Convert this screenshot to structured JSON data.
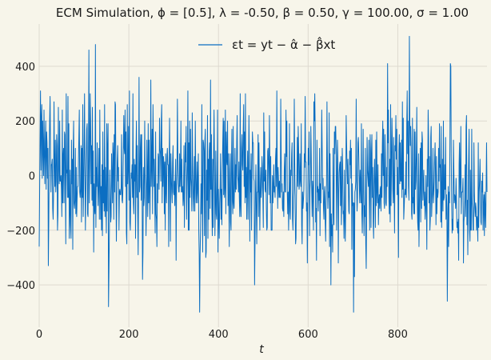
{
  "chart_data": {
    "type": "line",
    "title": "ECM Simulation, ϕ = [0.5], λ = -0.50, β = 0.50, γ = 100.00, σ = 1.00",
    "xlabel": "t",
    "ylabel": "",
    "xlim": [
      0,
      999
    ],
    "ylim": [
      -555,
      555
    ],
    "xticks": [
      0,
      200,
      400,
      600,
      800
    ],
    "yticks": [
      -400,
      -200,
      0,
      200,
      400
    ],
    "grid": true,
    "legend_position": "top-center",
    "colors": {
      "background": "#f7f5ea",
      "grid": "#dedad0",
      "series": "#0b6ec2"
    },
    "series": [
      {
        "name": "εt = yt − α̂ − β̂xt",
        "values": [
          -260,
          -60,
          140,
          310,
          20,
          210,
          260,
          -10,
          200,
          100,
          0,
          240,
          80,
          -30,
          120,
          200,
          -50,
          160,
          120,
          -10,
          100,
          -330,
          -170,
          70,
          200,
          290,
          80,
          -60,
          40,
          40,
          60,
          -120,
          -160,
          -60,
          270,
          40,
          -40,
          130,
          -60,
          -20,
          150,
          110,
          -200,
          -140,
          250,
          40,
          -30,
          200,
          -20,
          -20,
          0,
          -50,
          -150,
          240,
          -100,
          70,
          100,
          -100,
          160,
          150,
          -40,
          -250,
          300,
          10,
          20,
          -80,
          290,
          -80,
          190,
          -230,
          -140,
          20,
          -180,
          -230,
          130,
          -30,
          60,
          -270,
          100,
          200,
          -100,
          -120,
          -90,
          100,
          -140,
          30,
          -150,
          -80,
          -40,
          -40,
          40,
          140,
          240,
          -60,
          -80,
          -50,
          110,
          -170,
          100,
          -80,
          260,
          -150,
          -40,
          100,
          300,
          0,
          -200,
          -60,
          50,
          170,
          190,
          -140,
          -150,
          80,
          460,
          -100,
          30,
          300,
          200,
          -30,
          110,
          -90,
          250,
          -110,
          90,
          -280,
          -30,
          -120,
          -140,
          480,
          -190,
          30,
          -40,
          120,
          -20,
          -110,
          -40,
          100,
          -160,
          240,
          -20,
          -160,
          -40,
          -200,
          40,
          -220,
          160,
          -100,
          20,
          -130,
          260,
          -150,
          30,
          -100,
          -210,
          190,
          -130,
          110,
          190,
          -480,
          -350,
          -200,
          20,
          -80,
          -170,
          -150,
          80,
          -10,
          -100,
          120,
          80,
          -160,
          150,
          -60,
          270,
          260,
          -20,
          -240,
          -100,
          50,
          110,
          -20,
          30,
          -200,
          -60,
          -50,
          -70,
          -70,
          -40,
          150,
          -90,
          -100,
          -50,
          90,
          220,
          100,
          80,
          240,
          -40,
          160,
          -210,
          -250,
          260,
          -30,
          30,
          180,
          -90,
          310,
          -170,
          -200,
          -80,
          10,
          -10,
          40,
          -80,
          300,
          -100,
          -140,
          60,
          -20,
          40,
          -230,
          70,
          200,
          -80,
          110,
          -140,
          -290,
          -40,
          360,
          -60,
          -40,
          100,
          150,
          -90,
          150,
          -20,
          -380,
          -280,
          30,
          -110,
          -80,
          200,
          0,
          -40,
          -220,
          -100,
          130,
          -10,
          -150,
          190,
          -100,
          130,
          -60,
          -160,
          10,
          350,
          -40,
          50,
          170,
          -140,
          260,
          110,
          -40,
          60,
          -90,
          -210,
          160,
          -140,
          -160,
          -260,
          -30,
          -100,
          80,
          60,
          -50,
          210,
          100,
          80,
          -20,
          200,
          260,
          -100,
          100,
          -40,
          70,
          40,
          -140,
          50,
          -200,
          80,
          -50,
          -100,
          70,
          100,
          40,
          40,
          -260,
          30,
          210,
          -10,
          -240,
          80,
          0,
          -60,
          -100,
          50,
          110,
          -60,
          -70,
          -20,
          -110,
          -20,
          60,
          -310,
          -40,
          20,
          280,
          90,
          -30,
          -60,
          -60,
          80,
          -40,
          0,
          200,
          -60,
          60,
          -60,
          -40,
          -110,
          -80,
          110,
          -190,
          0,
          120,
          50,
          180,
          -160,
          -40,
          40,
          310,
          -200,
          120,
          -200,
          200,
          -80,
          170,
          -10,
          -40,
          -130,
          230,
          40,
          -80,
          -130,
          -30,
          70,
          -130,
          200,
          20,
          -100,
          -60,
          50,
          -100,
          -20,
          80,
          -200,
          -290,
          -500,
          -290,
          -200,
          -30,
          -140,
          260,
          -80,
          -280,
          130,
          120,
          90,
          -220,
          130,
          170,
          -300,
          -280,
          20,
          -90,
          220,
          -230,
          60,
          -160,
          90,
          120,
          -120,
          350,
          -50,
          150,
          -120,
          -220,
          60,
          -190,
          80,
          240,
          60,
          -220,
          -110,
          90,
          -140,
          -160,
          -40,
          240,
          -280,
          -50,
          -160,
          -230,
          -100,
          -40,
          80,
          -160,
          -50,
          -180,
          20,
          120,
          210,
          -70,
          200,
          -80,
          -40,
          240,
          -140,
          160,
          60,
          40,
          200,
          -110,
          80,
          -100,
          -260,
          20,
          80,
          -170,
          -200,
          60,
          170,
          -90,
          -140,
          180,
          -100,
          -120,
          -30,
          100,
          -60,
          40,
          -50,
          120,
          220,
          0,
          -20,
          -60,
          50,
          -80,
          -150,
          300,
          -110,
          -150,
          100,
          150,
          40,
          20,
          170,
          260,
          -40,
          160,
          -100,
          300,
          -80,
          30,
          -160,
          0,
          90,
          -160,
          -20,
          220,
          60,
          -240,
          20,
          -60,
          80,
          -200,
          -20,
          160,
          120,
          120,
          -10,
          -20,
          -400,
          -240,
          -60,
          40,
          -130,
          -250,
          -60,
          -60,
          150,
          -150,
          120,
          -40,
          -200,
          -60,
          30,
          -80,
          -40,
          70,
          30,
          -80,
          -190,
          230,
          -20,
          160,
          -50,
          -60,
          20,
          -120,
          -200,
          -190,
          90,
          100,
          20,
          -70,
          220,
          60,
          -100,
          70,
          -200,
          -200,
          -200,
          0,
          -100,
          -40,
          40,
          -60,
          -40,
          -80,
          60,
          100,
          -40,
          310,
          20,
          -120,
          30,
          -30,
          -80,
          -20,
          -80,
          -80,
          280,
          70,
          -60,
          -30,
          -120,
          -130,
          -60,
          -150,
          20,
          80,
          -60,
          -60,
          240,
          70,
          200,
          -60,
          -140,
          -60,
          -200,
          -100,
          190,
          -130,
          -160,
          20,
          0,
          80,
          120,
          -160,
          -200,
          -80,
          -50,
          280,
          60,
          -120,
          -250,
          -230,
          -70,
          -20,
          140,
          -40,
          180,
          100,
          -50,
          -30,
          80,
          -20,
          -40,
          190,
          -180,
          -250,
          -60,
          -120,
          -90,
          -50,
          80,
          30,
          290,
          50,
          50,
          -130,
          -100,
          -320,
          -100,
          100,
          40,
          160,
          -220,
          -50,
          -10,
          180,
          70,
          -60,
          -150,
          -20,
          -60,
          -200,
          270,
          200,
          300,
          170,
          -170,
          -120,
          -310,
          130,
          -60,
          -40,
          -130,
          -50,
          -90,
          100,
          -220,
          -30,
          -100,
          40,
          240,
          100,
          -50,
          -10,
          -120,
          -160,
          -60,
          -40,
          -170,
          -240,
          -100,
          -30,
          270,
          60,
          -120,
          -60,
          -80,
          230,
          -260,
          80,
          -120,
          -400,
          -140,
          -220,
          -180,
          -280,
          100,
          -120,
          -180,
          160,
          80,
          180,
          180,
          90,
          -200,
          -50,
          130,
          60,
          -320,
          -60,
          10,
          40,
          50,
          -110,
          70,
          -180,
          -100,
          100,
          40,
          -140,
          -130,
          -230,
          20,
          -160,
          -240,
          -120,
          220,
          120,
          30,
          -30,
          60,
          -40,
          -130,
          -140,
          90,
          40,
          130,
          -10,
          100,
          -270,
          -30,
          -110,
          -100,
          -500,
          -100,
          -370,
          -60,
          -50,
          -20,
          280,
          -20,
          -130,
          -80,
          120,
          140,
          70,
          -20,
          -100,
          20,
          -40,
          -100,
          190,
          -140,
          -210,
          -100,
          170,
          -60,
          -220,
          -110,
          -150,
          100,
          -250,
          -340,
          -100,
          140,
          20,
          -10,
          -40,
          130,
          -80,
          -200,
          150,
          90,
          -190,
          80,
          150,
          -80,
          30,
          -170,
          -230,
          -20,
          60,
          -40,
          -190,
          130,
          -110,
          160,
          -60,
          -100,
          40,
          -180,
          -100,
          -70,
          -120,
          -50,
          -40,
          -130,
          80,
          -80,
          110,
          200,
          0,
          170,
          -100,
          -120,
          150,
          60,
          -100,
          -110,
          30,
          -40,
          410,
          120,
          240,
          -80,
          -140,
          60,
          -170,
          260,
          -110,
          30,
          210,
          110,
          -50,
          -100,
          140,
          -40,
          -210,
          110,
          90,
          220,
          60,
          170,
          -70,
          30,
          -90,
          -300,
          90,
          150,
          -30,
          120,
          -20,
          -20,
          130,
          -80,
          270,
          -50,
          210,
          -160,
          -120,
          -70,
          -50,
          -70,
          50,
          -80,
          190,
          310,
          80,
          200,
          -40,
          -90,
          510,
          200,
          110,
          180,
          100,
          -140,
          -160,
          210,
          -100,
          -80,
          -140,
          170,
          -140,
          160,
          -50,
          -20,
          90,
          250,
          -80,
          -170,
          -200,
          80,
          -260,
          -130,
          -10,
          100,
          -170,
          120,
          -120,
          160,
          130,
          -90,
          -40,
          20,
          -110,
          -60,
          -160,
          -120,
          0,
          -110,
          -270,
          60,
          -40,
          240,
          140,
          -100,
          70,
          -200,
          -160,
          140,
          180,
          -150,
          -90,
          -50,
          100,
          -100,
          -70,
          -20,
          70,
          120,
          -10,
          -180,
          70,
          -140,
          -50,
          -80,
          -60,
          100,
          -20,
          190,
          30,
          40,
          -170,
          180,
          -190,
          -80,
          60,
          -130,
          200,
          -90,
          -80,
          40,
          -50,
          140,
          -160,
          -70,
          -120,
          -460,
          -220,
          -40,
          -260,
          -60,
          -100,
          120,
          410,
          400,
          70,
          -100,
          -210,
          -160,
          -200,
          130,
          20,
          -100,
          -70,
          -80,
          -120,
          -10,
          -90,
          -190,
          -170,
          -210,
          -160,
          -310,
          40,
          120,
          -80,
          -10,
          180,
          -140,
          -60,
          -60,
          -60,
          -10,
          -320,
          -170,
          -140,
          -90,
          40,
          -150,
          180,
          220,
          -180,
          -90,
          -290,
          -40,
          60,
          170,
          -200,
          -240,
          20,
          -200,
          -200,
          170,
          -100,
          -120,
          -200,
          -200,
          120,
          -60,
          -120,
          -150,
          -100,
          -120,
          -200,
          -150,
          -170,
          -240,
          120,
          -190,
          -60,
          -20,
          60,
          -50,
          -170,
          -180,
          -20,
          -60,
          10,
          -200,
          -110,
          -70,
          -220,
          -60,
          -120,
          -190,
          -40,
          120,
          -60
        ]
      }
    ]
  }
}
